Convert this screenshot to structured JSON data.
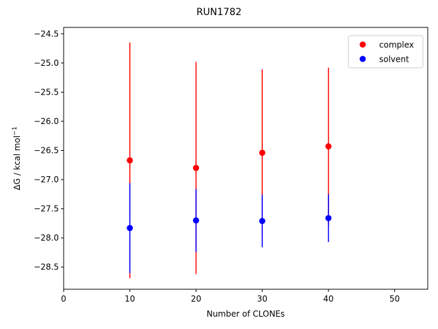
{
  "chart_data": {
    "type": "scatter",
    "title": "RUN1782",
    "xlabel": "Number of CLONEs",
    "ylabel": "ΔG / kcal mol",
    "ylabel_superscript": "−1",
    "xlim": [
      0,
      55
    ],
    "ylim": [
      -28.88,
      -24.39
    ],
    "xticks": [
      0,
      10,
      20,
      30,
      40,
      50
    ],
    "xtick_labels": [
      "0",
      "10",
      "20",
      "30",
      "40",
      "50"
    ],
    "yticks": [
      -28.5,
      -28.0,
      -27.5,
      -27.0,
      -26.5,
      -26.0,
      -25.5,
      -25.0,
      -24.5
    ],
    "ytick_labels": [
      "−28.5",
      "−28.0",
      "−27.5",
      "−27.0",
      "−26.5",
      "−26.0",
      "−25.5",
      "−25.0",
      "−24.5"
    ],
    "grid": false,
    "legend_position": "top-right",
    "series": [
      {
        "name": "complex",
        "color": "#ff0000",
        "x": [
          10,
          20,
          30,
          40
        ],
        "y": [
          -26.67,
          -26.8,
          -26.54,
          -26.43
        ],
        "yerr": [
          2.02,
          1.82,
          1.43,
          1.35
        ]
      },
      {
        "name": "solvent",
        "color": "#0000ff",
        "x": [
          10,
          20,
          30,
          40
        ],
        "y": [
          -27.83,
          -27.7,
          -27.71,
          -27.66
        ],
        "yerr": [
          0.77,
          0.54,
          0.45,
          0.41
        ]
      }
    ]
  }
}
